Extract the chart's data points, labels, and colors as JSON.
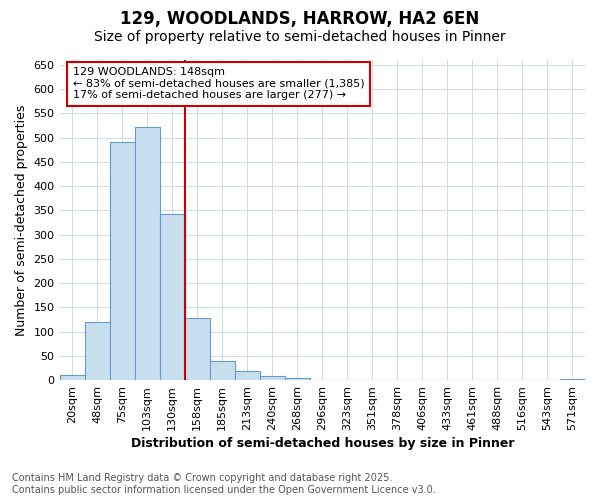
{
  "title": "129, WOODLANDS, HARROW, HA2 6EN",
  "subtitle": "Size of property relative to semi-detached houses in Pinner",
  "xlabel": "Distribution of semi-detached houses by size in Pinner",
  "ylabel": "Number of semi-detached properties",
  "categories": [
    "20sqm",
    "48sqm",
    "75sqm",
    "103sqm",
    "130sqm",
    "158sqm",
    "185sqm",
    "213sqm",
    "240sqm",
    "268sqm",
    "296sqm",
    "323sqm",
    "351sqm",
    "378sqm",
    "406sqm",
    "433sqm",
    "461sqm",
    "488sqm",
    "516sqm",
    "543sqm",
    "571sqm"
  ],
  "values": [
    10,
    120,
    490,
    522,
    342,
    128,
    40,
    18,
    8,
    5,
    0,
    0,
    0,
    0,
    0,
    0,
    0,
    0,
    0,
    0,
    3
  ],
  "bar_color": "#c8dff0",
  "bar_edge_color": "#6699cc",
  "vline_position": 4.5,
  "vline_color": "#cc0000",
  "annotation_line1": "129 WOODLANDS: 148sqm",
  "annotation_line2": "← 83% of semi-detached houses are smaller (1,385)",
  "annotation_line3": "17% of semi-detached houses are larger (277) →",
  "annotation_box_facecolor": "#ffffff",
  "annotation_box_edgecolor": "#cc0000",
  "ylim": [
    0,
    660
  ],
  "yticks": [
    0,
    50,
    100,
    150,
    200,
    250,
    300,
    350,
    400,
    450,
    500,
    550,
    600,
    650
  ],
  "bg_color": "#ffffff",
  "grid_color": "#d0dce8",
  "footer_line1": "Contains HM Land Registry data © Crown copyright and database right 2025.",
  "footer_line2": "Contains public sector information licensed under the Open Government Licence v3.0.",
  "title_fontsize": 12,
  "subtitle_fontsize": 10,
  "axis_label_fontsize": 9,
  "tick_fontsize": 8,
  "annotation_fontsize": 8,
  "footer_fontsize": 7
}
